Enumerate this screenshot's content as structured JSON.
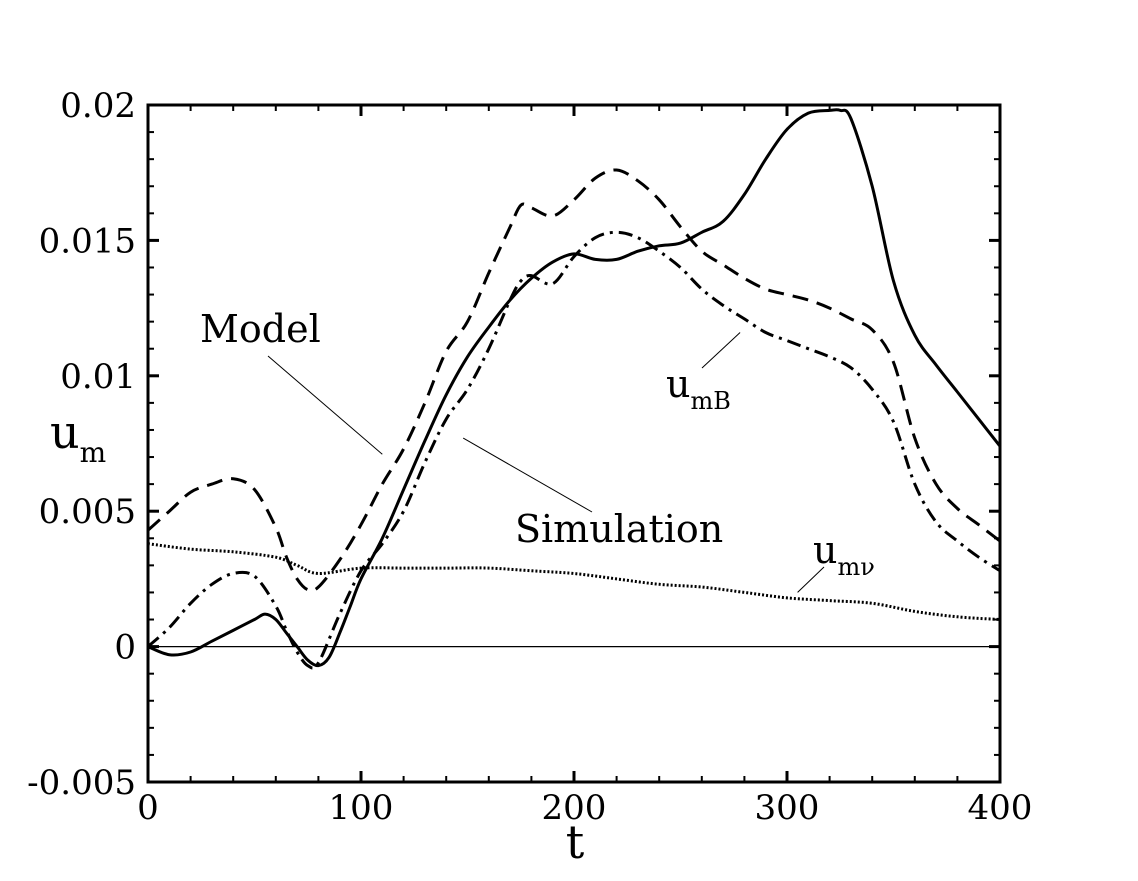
{
  "chart_data": {
    "type": "line",
    "xlabel": "t",
    "ylabel": "u",
    "ylabel_sub": "m",
    "xlim": [
      0,
      400
    ],
    "ylim": [
      -0.005,
      0.02
    ],
    "xticks": [
      0,
      100,
      200,
      300,
      400
    ],
    "xtick_labels": [
      "0",
      "100",
      "200",
      "300",
      "400"
    ],
    "yticks": [
      -0.005,
      0,
      0.005,
      0.01,
      0.015,
      0.02
    ],
    "ytick_labels": [
      "-0.005",
      "0",
      "0.005",
      "0.01",
      "0.015",
      "0.02"
    ],
    "grid": false,
    "series": [
      {
        "name": "Simulation (u_m)",
        "style": "solid",
        "x": [
          0,
          10,
          20,
          30,
          40,
          50,
          55,
          60,
          65,
          70,
          75,
          80,
          85,
          90,
          95,
          100,
          110,
          120,
          130,
          140,
          150,
          160,
          170,
          180,
          190,
          200,
          210,
          220,
          230,
          240,
          250,
          260,
          270,
          280,
          290,
          300,
          310,
          320,
          325,
          330,
          340,
          350,
          360,
          370,
          380,
          390,
          400
        ],
        "y": [
          0,
          -0.0003,
          -0.0002,
          0.0002,
          0.0006,
          0.001,
          0.0012,
          0.001,
          0.0005,
          0.0,
          -0.0005,
          -0.0007,
          -0.0004,
          0.0005,
          0.0015,
          0.0025,
          0.004,
          0.0058,
          0.0076,
          0.0093,
          0.0107,
          0.0118,
          0.0128,
          0.0136,
          0.0142,
          0.0145,
          0.0143,
          0.0143,
          0.0146,
          0.0148,
          0.0149,
          0.0153,
          0.0157,
          0.0167,
          0.018,
          0.0191,
          0.0197,
          0.0198,
          0.0198,
          0.0195,
          0.017,
          0.0135,
          0.0115,
          0.0104,
          0.0094,
          0.0084,
          0.0074
        ]
      },
      {
        "name": "Model",
        "style": "dashed",
        "x": [
          0,
          10,
          20,
          30,
          40,
          50,
          60,
          65,
          70,
          75,
          80,
          90,
          100,
          110,
          120,
          130,
          140,
          150,
          160,
          170,
          175,
          180,
          190,
          200,
          210,
          220,
          230,
          240,
          250,
          260,
          270,
          280,
          290,
          300,
          310,
          320,
          330,
          340,
          350,
          360,
          370,
          380,
          390,
          400
        ],
        "y": [
          0.0043,
          0.005,
          0.0057,
          0.006,
          0.0062,
          0.0058,
          0.0044,
          0.0033,
          0.0025,
          0.0021,
          0.0022,
          0.0032,
          0.0045,
          0.006,
          0.0073,
          0.009,
          0.0109,
          0.012,
          0.0138,
          0.0155,
          0.0163,
          0.0162,
          0.0159,
          0.0165,
          0.0173,
          0.0176,
          0.0172,
          0.0165,
          0.0155,
          0.0146,
          0.0141,
          0.0136,
          0.0132,
          0.013,
          0.0128,
          0.0125,
          0.0121,
          0.0117,
          0.0105,
          0.0077,
          0.006,
          0.0051,
          0.0045,
          0.0039
        ]
      },
      {
        "name": "u_mB",
        "style": "dashdot",
        "x": [
          0,
          10,
          20,
          30,
          40,
          50,
          60,
          65,
          70,
          75,
          80,
          90,
          100,
          110,
          120,
          130,
          140,
          150,
          160,
          170,
          175,
          180,
          190,
          200,
          210,
          220,
          230,
          240,
          250,
          260,
          270,
          280,
          290,
          300,
          310,
          320,
          330,
          340,
          350,
          360,
          370,
          380,
          390,
          400
        ],
        "y": [
          0,
          0.0007,
          0.0016,
          0.0023,
          0.0027,
          0.0026,
          0.0015,
          0.0006,
          -0.0002,
          -0.0007,
          -0.0006,
          0.0012,
          0.0028,
          0.0038,
          0.005,
          0.0068,
          0.0084,
          0.0095,
          0.011,
          0.0128,
          0.0135,
          0.0137,
          0.0134,
          0.0144,
          0.0151,
          0.0153,
          0.0151,
          0.0146,
          0.014,
          0.0132,
          0.0126,
          0.0121,
          0.0116,
          0.0113,
          0.011,
          0.0107,
          0.0103,
          0.0095,
          0.0083,
          0.006,
          0.0046,
          0.0039,
          0.0033,
          0.0028
        ]
      },
      {
        "name": "u_mν",
        "style": "dotted",
        "x": [
          0,
          20,
          40,
          60,
          70,
          80,
          100,
          120,
          140,
          160,
          180,
          200,
          220,
          240,
          260,
          280,
          300,
          320,
          340,
          360,
          380,
          400
        ],
        "y": [
          0.0038,
          0.0036,
          0.0035,
          0.0033,
          0.003,
          0.0027,
          0.0029,
          0.0029,
          0.0029,
          0.0029,
          0.0028,
          0.0027,
          0.0025,
          0.0023,
          0.0022,
          0.002,
          0.0018,
          0.0017,
          0.0016,
          0.0013,
          0.0011,
          0.001
        ]
      },
      {
        "name": "zero line",
        "style": "thin",
        "x": [
          0,
          400
        ],
        "y": [
          0,
          0
        ]
      }
    ],
    "annotations": {
      "model": {
        "text": "Model",
        "points_to": {
          "x": 110,
          "y": 0.0071
        }
      },
      "simulation": {
        "text": "Simulation",
        "points_to": {
          "x": 148,
          "y": 0.0077
        }
      },
      "umb": {
        "text": "u",
        "sub": "mB",
        "points_to": {
          "x": 278,
          "y": 0.0116
        }
      },
      "umv": {
        "text": "u",
        "sub": "mν",
        "points_to": {
          "x": 305,
          "y": 0.002
        }
      }
    }
  }
}
